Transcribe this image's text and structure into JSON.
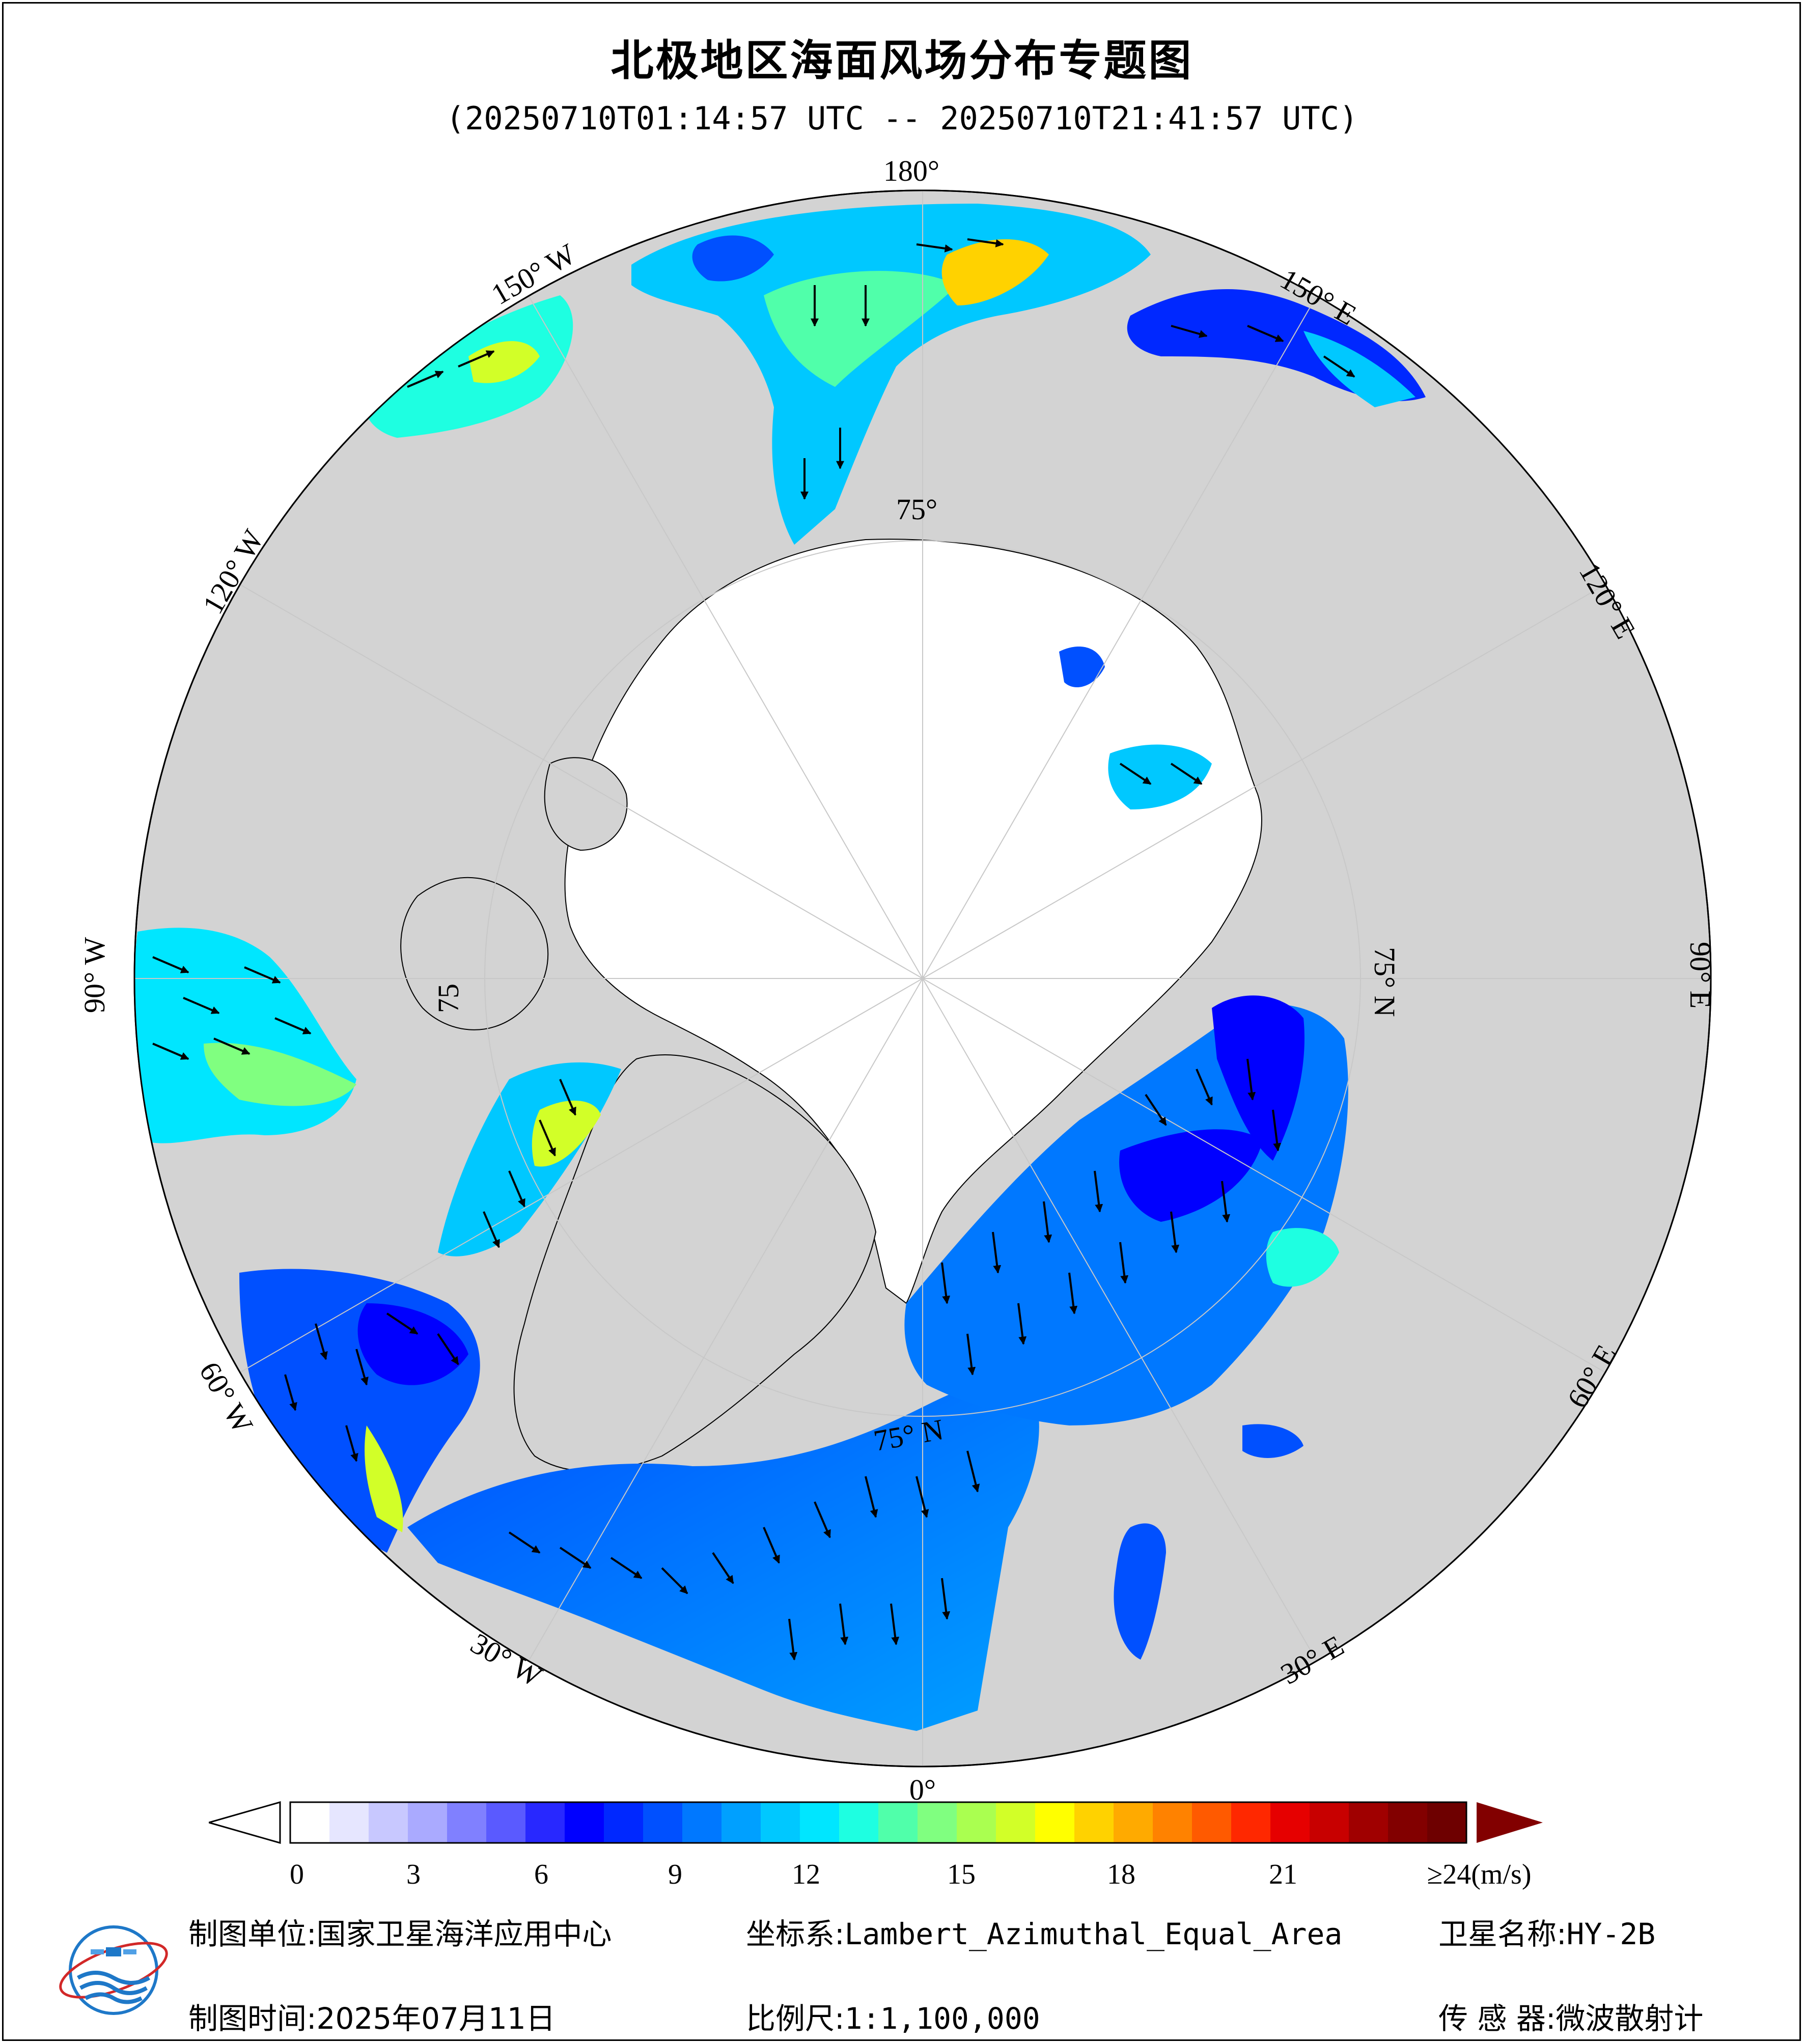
{
  "title": "北极地区海面风场分布专题图",
  "subtitle": "(20250710T01:14:57 UTC -- 20250710T21:41:57 UTC)",
  "longitude_labels": {
    "lon_180": "180°",
    "lon_150w": "150° W",
    "lon_150e": "150° E",
    "lon_120w": "120° W",
    "lon_120e": "120° E",
    "lon_90w": "90° W",
    "lon_90e": "90° E",
    "lon_60w": "60° W",
    "lon_60e": "60° E",
    "lon_30w": "30° W",
    "lon_30e": "30° E",
    "lon_0": "0°"
  },
  "latitude_labels": {
    "lat_top": "75°",
    "lat_right": "75° N",
    "lat_left": "75",
    "lat_bottom": "75° N"
  },
  "colorbar": {
    "ticks": [
      "0",
      "3",
      "6",
      "9",
      "12",
      "15",
      "18",
      "21"
    ],
    "max_label": "≥24(m/s)",
    "colors": [
      "#ffffff",
      "#e6e6ff",
      "#c8c8ff",
      "#aaaaff",
      "#8080ff",
      "#5a5aff",
      "#2828ff",
      "#0000ff",
      "#0028ff",
      "#0050ff",
      "#0078ff",
      "#00a0ff",
      "#00c8ff",
      "#00e6ff",
      "#1effe1",
      "#50ffaa",
      "#80ff80",
      "#aaff50",
      "#d2ff28",
      "#ffff00",
      "#ffd200",
      "#ffaa00",
      "#ff8200",
      "#ff5a00",
      "#ff2800",
      "#e60000",
      "#c80000",
      "#a00000",
      "#820000",
      "#6e0000"
    ],
    "under_color": "#ffffff",
    "over_color": "#820000"
  },
  "map_colors": {
    "ocean_nodata": "#ffffff",
    "land": "#d3d3d3",
    "grid": "#c8c8c8",
    "coast": "#000000",
    "arrow": "#000000"
  },
  "footer": {
    "unit_label": "制图单位:",
    "unit_value": "国家卫星海洋应用中心",
    "crs_label": "坐标系:",
    "crs_value": "Lambert_Azimuthal_Equal_Area",
    "satellite_label": "卫星名称:",
    "satellite_value": "HY-2B",
    "date_label": "制图时间:",
    "date_value": "2025年07月11日",
    "scale_label": "比例尺:",
    "scale_value": "1:1,100,000",
    "sensor_label": "传 感 器:",
    "sensor_value": "微波散射计"
  },
  "logo_icon": "nsoas-logo-icon"
}
